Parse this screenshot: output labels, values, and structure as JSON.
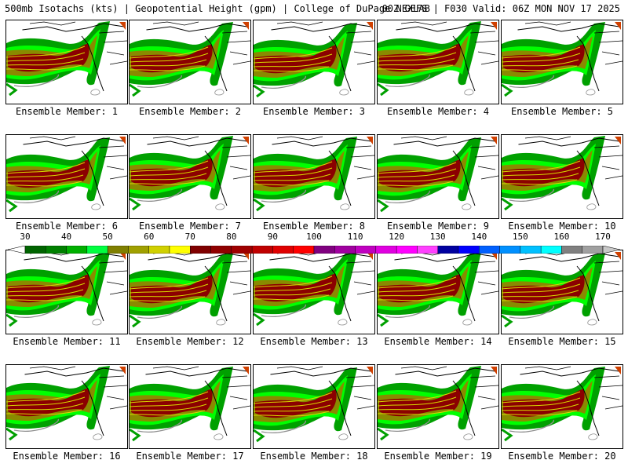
{
  "header": {
    "title_left": "500mb Isotachs (kts) | Geopotential Height (gpm) | College of DuPage NEXLAB",
    "title_right": "00Z GEFS | F030 Valid: 06Z MON NOV 17 2025"
  },
  "members": [
    {
      "number": 1,
      "label": "Ensemble Member: 1"
    },
    {
      "number": 2,
      "label": "Ensemble Member: 2"
    },
    {
      "number": 3,
      "label": "Ensemble Member: 3"
    },
    {
      "number": 4,
      "label": "Ensemble Member: 4"
    },
    {
      "number": 5,
      "label": "Ensemble Member: 5"
    },
    {
      "number": 6,
      "label": "Ensemble Member: 6"
    },
    {
      "number": 7,
      "label": "Ensemble Member: 7"
    },
    {
      "number": 8,
      "label": "Ensemble Member: 8"
    },
    {
      "number": 9,
      "label": "Ensemble Member: 9"
    },
    {
      "number": 10,
      "label": "Ensemble Member: 10"
    },
    {
      "number": 11,
      "label": "Ensemble Member: 11"
    },
    {
      "number": 12,
      "label": "Ensemble Member: 12"
    },
    {
      "number": 13,
      "label": "Ensemble Member: 13"
    },
    {
      "number": 14,
      "label": "Ensemble Member: 14"
    },
    {
      "number": 15,
      "label": "Ensemble Member: 15"
    },
    {
      "number": 16,
      "label": "Ensemble Member: 16"
    },
    {
      "number": 17,
      "label": "Ensemble Member: 17"
    },
    {
      "number": 18,
      "label": "Ensemble Member: 18"
    },
    {
      "number": 19,
      "label": "Ensemble Member: 19"
    },
    {
      "number": 20,
      "label": "Ensemble Member: 20"
    }
  ],
  "colorbar": {
    "units": "kts",
    "tick_labels": [
      "30",
      "40",
      "50",
      "60",
      "70",
      "80",
      "90",
      "100",
      "110",
      "120",
      "130",
      "140",
      "150",
      "160",
      "170"
    ],
    "bins": [
      {
        "min": 30,
        "max": 40,
        "colors": [
          "#006400",
          "#008000"
        ]
      },
      {
        "min": 40,
        "max": 50,
        "colors": [
          "#00b000",
          "#00ff40"
        ]
      },
      {
        "min": 50,
        "max": 60,
        "colors": [
          "#808000",
          "#a0a000"
        ]
      },
      {
        "min": 60,
        "max": 70,
        "colors": [
          "#d0d000",
          "#ffff00"
        ]
      },
      {
        "min": 70,
        "max": 80,
        "colors": [
          "#800000",
          "#900000"
        ]
      },
      {
        "min": 80,
        "max": 90,
        "colors": [
          "#a00000",
          "#c00000"
        ]
      },
      {
        "min": 90,
        "max": 100,
        "colors": [
          "#e00000",
          "#ff0000"
        ]
      },
      {
        "min": 100,
        "max": 110,
        "colors": [
          "#800080",
          "#a000a0"
        ]
      },
      {
        "min": 110,
        "max": 120,
        "colors": [
          "#c000c0",
          "#e000e0"
        ]
      },
      {
        "min": 120,
        "max": 130,
        "colors": [
          "#ff00ff",
          "#ff40ff"
        ]
      },
      {
        "min": 130,
        "max": 140,
        "colors": [
          "#0000a0",
          "#0000ff"
        ]
      },
      {
        "min": 140,
        "max": 150,
        "colors": [
          "#0060ff",
          "#0090ff"
        ]
      },
      {
        "min": 150,
        "max": 160,
        "colors": [
          "#00c0ff",
          "#00ffff"
        ]
      },
      {
        "min": 160,
        "max": 170,
        "colors": [
          "#808080",
          "#a0a0a0"
        ]
      }
    ],
    "above_color": "#c8c8c8",
    "below_color": "#ffffff"
  },
  "map_colors": {
    "band_green": "#00a000",
    "band_light_green": "#00ff00",
    "band_olive": "#8a8a00",
    "jet_core": "#8b0000",
    "jet_edge": "#d04000",
    "height_contour": "#d8d800",
    "coast": "#000000",
    "low_contour": "#909090"
  }
}
